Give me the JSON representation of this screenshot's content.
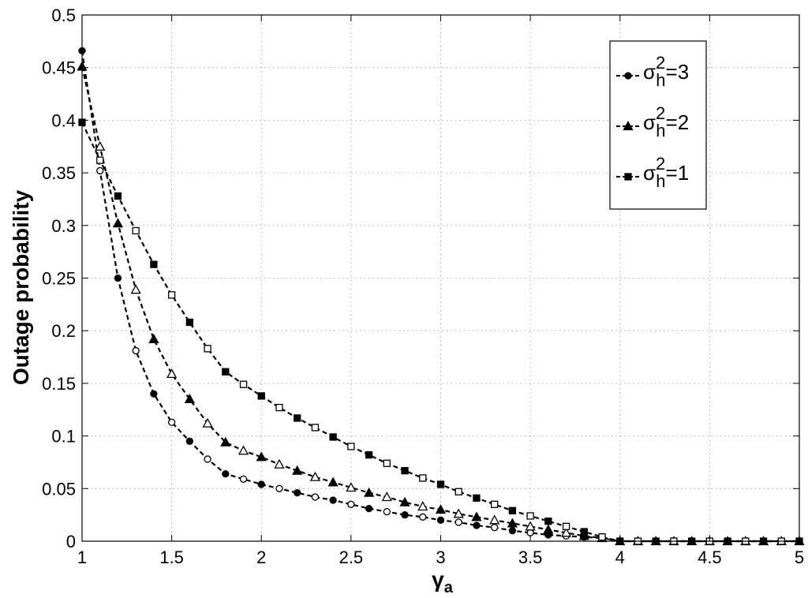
{
  "chart_data": {
    "type": "line",
    "title": "",
    "xlabel": "γ",
    "xlabel_subscript": "a",
    "ylabel": "Outage probability",
    "xlim": [
      1,
      5
    ],
    "ylim": [
      0,
      0.5
    ],
    "xticks": [
      "1",
      "1.5",
      "2",
      "2.5",
      "3",
      "3.5",
      "4",
      "4.5",
      "5"
    ],
    "yticks": [
      "0",
      "0.05",
      "0.1",
      "0.15",
      "0.2",
      "0.25",
      "0.3",
      "0.35",
      "0.4",
      "0.45",
      "0.5"
    ],
    "grid": true,
    "legend_position": "top-right",
    "x": [
      1.0,
      1.1,
      1.2,
      1.3,
      1.4,
      1.5,
      1.6,
      1.7,
      1.8,
      1.9,
      2.0,
      2.1,
      2.2,
      2.3,
      2.4,
      2.5,
      2.6,
      2.7,
      2.8,
      2.9,
      3.0,
      3.1,
      3.2,
      3.3,
      3.4,
      3.5,
      3.6,
      3.7,
      3.8,
      3.9,
      4.0,
      4.1,
      4.2,
      4.3,
      4.4,
      4.5,
      4.6,
      4.7,
      4.8,
      4.9,
      5.0
    ],
    "series": [
      {
        "name_base": "σ",
        "name_sup": "2",
        "name_sub": "h",
        "name_suffix": "=3",
        "marker": "circle",
        "values": [
          0.466,
          0.352,
          0.25,
          0.181,
          0.14,
          0.113,
          0.095,
          0.078,
          0.064,
          0.059,
          0.054,
          0.05,
          0.046,
          0.042,
          0.039,
          0.035,
          0.031,
          0.028,
          0.025,
          0.023,
          0.02,
          0.018,
          0.015,
          0.013,
          0.01,
          0.008,
          0.006,
          0.005,
          0.004,
          0.003,
          0.0,
          0.0,
          0.0,
          0.0,
          0.0,
          0.0,
          0.0,
          0.0,
          0.0,
          0.0,
          0.0
        ]
      },
      {
        "name_base": "σ",
        "name_sup": "2",
        "name_sub": "h",
        "name_suffix": "=2",
        "marker": "triangle",
        "values": [
          0.451,
          0.375,
          0.302,
          0.239,
          0.192,
          0.159,
          0.135,
          0.112,
          0.094,
          0.086,
          0.08,
          0.073,
          0.067,
          0.061,
          0.056,
          0.051,
          0.046,
          0.042,
          0.037,
          0.033,
          0.03,
          0.026,
          0.023,
          0.02,
          0.017,
          0.014,
          0.011,
          0.008,
          0.005,
          0.003,
          0.0,
          0.0,
          0.0,
          0.0,
          0.0,
          0.0,
          0.0,
          0.0,
          0.0,
          0.0,
          0.0
        ]
      },
      {
        "name_base": "σ",
        "name_sup": "2",
        "name_sub": "h",
        "name_suffix": "=1",
        "marker": "square",
        "values": [
          0.398,
          0.362,
          0.328,
          0.295,
          0.263,
          0.234,
          0.208,
          0.183,
          0.161,
          0.149,
          0.138,
          0.127,
          0.117,
          0.108,
          0.099,
          0.09,
          0.082,
          0.074,
          0.067,
          0.06,
          0.054,
          0.047,
          0.041,
          0.035,
          0.029,
          0.024,
          0.019,
          0.014,
          0.009,
          0.004,
          0.0,
          0.0,
          0.0,
          0.0,
          0.0,
          0.0,
          0.0,
          0.0,
          0.0,
          0.0,
          0.0
        ]
      }
    ]
  }
}
